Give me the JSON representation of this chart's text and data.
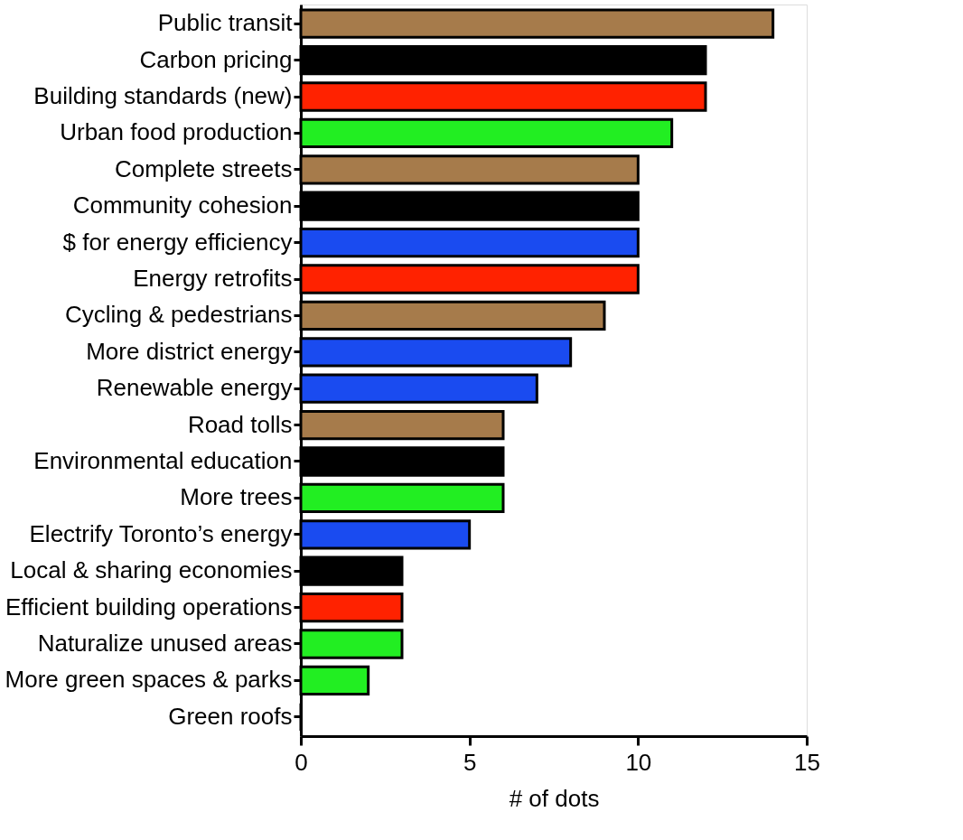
{
  "chart_data": {
    "type": "bar",
    "orientation": "horizontal",
    "xlabel": "# of dots",
    "categories": [
      "Public transit",
      "Carbon pricing",
      "Building standards (new)",
      "Urban food production ",
      "Complete streets",
      "Community cohesion",
      "$ for energy efficiency",
      "Energy retrofits",
      "Cycling & pedestrians",
      "More district energy",
      "Renewable energy",
      "Road tolls",
      "Environmental education",
      "More trees",
      "Electrify Toronto’s energy",
      "Local & sharing economies",
      "Efficient building operations",
      "Naturalize unused areas",
      "More green spaces & parks",
      "Green roofs"
    ],
    "values": [
      14,
      12,
      12,
      11,
      10,
      10,
      10,
      10,
      9,
      8,
      7,
      6,
      6,
      6,
      5,
      3,
      3,
      3,
      2,
      0
    ],
    "colors": [
      "#a67b4b",
      "#000000",
      "#ff2200",
      "#22ee22",
      "#a67b4b",
      "#000000",
      "#1a4bf0",
      "#ff2200",
      "#a67b4b",
      "#1a4bf0",
      "#1a4bf0",
      "#a67b4b",
      "#000000",
      "#22ee22",
      "#1a4bf0",
      "#000000",
      "#ff2200",
      "#22ee22",
      "#22ee22",
      "#ffffff"
    ],
    "xlim": [
      0,
      15
    ],
    "xticks": [
      0,
      5,
      10,
      15
    ],
    "grid": false
  }
}
